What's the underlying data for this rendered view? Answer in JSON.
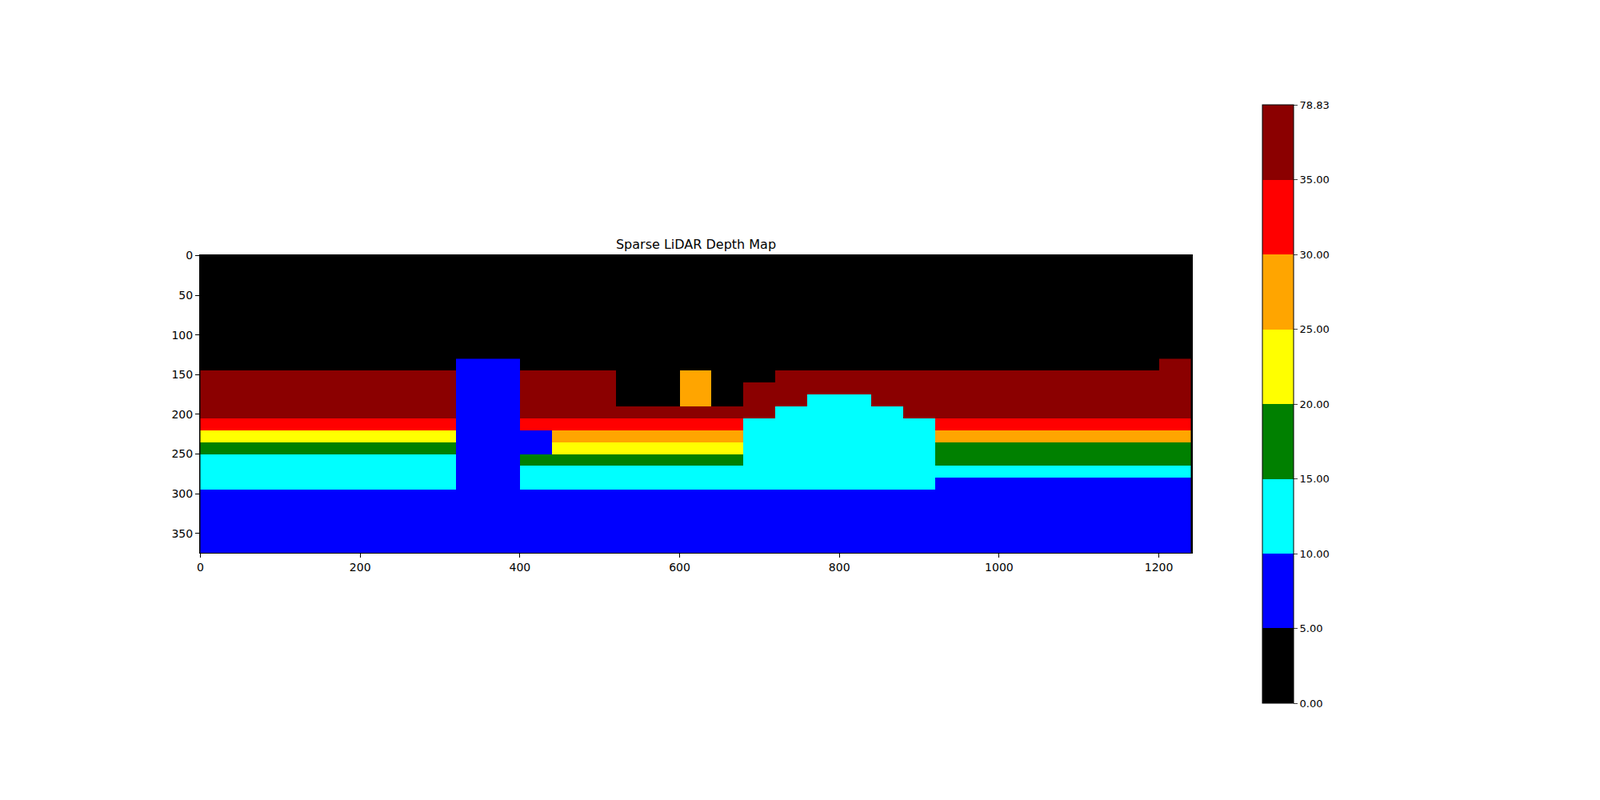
{
  "chart_data": {
    "type": "heatmap",
    "title": "Sparse LiDAR Depth Map",
    "x": [
      20,
      60,
      100,
      140,
      180,
      220,
      260,
      300,
      340,
      380,
      420,
      460,
      500,
      540,
      580,
      620,
      660,
      700,
      740,
      780,
      820,
      860,
      900,
      940,
      980,
      1020,
      1060,
      1100,
      1140,
      1180,
      1220
    ],
    "y": [
      137.5,
      152.5,
      167.5,
      182.5,
      197.5,
      212.5,
      227.5,
      242.5,
      257.5,
      272.5,
      287.5,
      302.5,
      317.5,
      332.5,
      347.5,
      362.5,
      377.5
    ],
    "cells": [
      [
        null,
        null,
        null,
        null,
        null,
        null,
        null,
        null,
        6,
        6,
        null,
        null,
        null,
        null,
        null,
        null,
        null,
        null,
        null,
        null,
        null,
        null,
        null,
        null,
        null,
        null,
        null,
        null,
        null,
        null,
        40
      ],
      [
        45,
        45,
        45,
        45,
        45,
        45,
        45,
        45,
        6,
        6,
        45,
        45,
        45,
        null,
        null,
        28,
        null,
        null,
        45,
        45,
        45,
        45,
        45,
        45,
        45,
        45,
        45,
        45,
        45,
        45,
        40
      ],
      [
        45,
        45,
        45,
        45,
        45,
        45,
        45,
        45,
        6,
        6,
        45,
        45,
        45,
        null,
        null,
        28,
        null,
        45,
        45,
        45,
        45,
        45,
        45,
        45,
        45,
        45,
        45,
        45,
        45,
        45,
        40
      ],
      [
        45,
        45,
        45,
        45,
        45,
        45,
        45,
        45,
        6,
        6,
        45,
        45,
        45,
        null,
        null,
        28,
        null,
        45,
        45,
        13,
        13,
        45,
        45,
        45,
        45,
        45,
        45,
        45,
        45,
        45,
        40
      ],
      [
        40,
        40,
        40,
        40,
        40,
        40,
        40,
        40,
        6,
        6,
        38,
        38,
        38,
        38,
        38,
        38,
        38,
        35,
        13,
        13,
        13,
        13,
        36,
        38,
        38,
        38,
        38,
        38,
        38,
        38,
        36
      ],
      [
        33,
        33,
        33,
        33,
        33,
        33,
        33,
        33,
        6,
        6,
        33,
        33,
        33,
        33,
        33,
        33,
        33,
        13,
        13,
        13,
        13,
        13,
        13,
        33,
        33,
        33,
        33,
        33,
        33,
        33,
        33
      ],
      [
        23,
        23,
        23,
        23,
        23,
        23,
        23,
        23,
        6,
        6,
        6,
        27,
        27,
        27,
        27,
        27,
        27,
        13,
        13,
        13,
        13,
        13,
        13,
        26,
        26,
        26,
        26,
        26,
        26,
        26,
        26
      ],
      [
        18,
        18,
        18,
        18,
        18,
        18,
        18,
        18,
        6,
        6,
        6,
        21,
        21,
        21,
        21,
        21,
        21,
        13,
        13,
        13,
        13,
        13,
        13,
        19,
        19,
        19,
        19,
        19,
        19,
        19,
        19
      ],
      [
        14,
        14,
        14,
        14,
        14,
        14,
        14,
        14,
        6,
        6,
        16,
        16,
        16,
        16,
        16,
        16,
        16,
        13,
        13,
        13,
        13,
        13,
        13,
        15,
        15,
        15,
        15,
        15,
        15,
        15,
        15
      ],
      [
        12,
        12,
        12,
        12,
        12,
        12,
        12,
        12,
        6,
        6,
        12,
        12,
        12,
        12,
        12,
        12,
        12,
        12,
        12,
        12,
        12,
        12,
        12,
        12,
        12,
        12,
        12,
        12,
        12,
        12,
        12
      ],
      [
        11,
        11,
        11,
        11,
        11,
        11,
        11,
        11,
        7,
        7,
        11,
        11,
        11,
        11,
        11,
        11,
        11,
        11,
        11,
        11,
        11,
        11,
        11,
        9,
        9,
        9,
        9,
        9,
        9,
        9,
        9
      ],
      [
        8,
        8,
        8,
        8,
        8,
        8,
        8,
        8,
        8,
        8,
        8,
        8,
        8,
        8,
        8,
        8,
        8,
        8,
        8,
        8,
        8,
        8,
        8,
        8,
        8,
        8,
        8,
        8,
        8,
        8,
        8
      ],
      [
        7.5,
        7.5,
        7.5,
        7.5,
        7.5,
        7.5,
        7.5,
        7.5,
        7.5,
        7.5,
        7.5,
        7.5,
        7.5,
        7.5,
        7.5,
        7.5,
        7.5,
        7.5,
        7.5,
        7.5,
        7.5,
        7.5,
        7.5,
        7.5,
        7.5,
        7.5,
        7.5,
        7.5,
        7.5,
        7.5,
        7.5
      ],
      [
        7,
        7,
        7,
        7,
        7,
        7,
        7,
        7,
        7,
        7,
        7,
        7,
        7,
        7,
        7,
        7,
        7,
        7,
        7,
        7,
        7,
        7,
        7,
        7,
        7,
        7,
        7,
        7,
        7,
        7,
        7
      ],
      [
        6.5,
        6.5,
        6.5,
        6.5,
        6.5,
        6.5,
        6.5,
        6.5,
        6.5,
        6.5,
        6.5,
        6.5,
        6.5,
        6.5,
        6.5,
        6.5,
        6.5,
        6.5,
        6.5,
        6.5,
        6.5,
        6.5,
        6.5,
        6.5,
        6.5,
        6.5,
        6.5,
        6.5,
        6.5,
        6.5,
        6.5
      ],
      [
        6,
        6,
        6,
        6,
        6,
        6,
        6,
        6,
        6,
        6,
        6,
        6,
        6,
        6,
        6,
        6,
        6,
        6,
        6,
        6,
        6,
        6,
        6,
        6,
        6,
        6,
        6,
        6,
        6,
        6,
        6
      ],
      [
        5.5,
        5.5,
        5.5,
        5.5,
        5.5,
        5.5,
        5.5,
        5.5,
        5.5,
        5.5,
        5.5,
        5.5,
        5.5,
        5.5,
        5.5,
        5.5,
        5.5,
        5.5,
        5.5,
        5.5,
        5.5,
        5.5,
        5.5,
        5.5,
        5.5,
        5.5,
        5.5,
        5.5,
        5.5,
        5.5,
        5.5
      ]
    ],
    "xlim": [
      -0.5,
      1241.5
    ],
    "ylim": [
      374.5,
      -0.5
    ],
    "xticks": [
      0,
      200,
      400,
      600,
      800,
      1000,
      1200
    ],
    "yticks": [
      0,
      50,
      100,
      150,
      200,
      250,
      300,
      350
    ],
    "colorbar_range": [
      0,
      78.83
    ],
    "colorbar_ticks": [
      {
        "value": 0,
        "label": "0.00"
      },
      {
        "value": 5,
        "label": "5.00"
      },
      {
        "value": 10,
        "label": "10.00"
      },
      {
        "value": 15,
        "label": "15.00"
      },
      {
        "value": 20,
        "label": "20.00"
      },
      {
        "value": 25,
        "label": "25.00"
      },
      {
        "value": 30,
        "label": "30.00"
      },
      {
        "value": 35,
        "label": "35.00"
      },
      {
        "value": 78.83,
        "label": "78.83"
      }
    ],
    "colors": [
      "#000000",
      "#0000ff",
      "#00ffff",
      "#008000",
      "#ffff00",
      "#ffa500",
      "#ff0000",
      "#8b0000"
    ],
    "grid": false
  }
}
